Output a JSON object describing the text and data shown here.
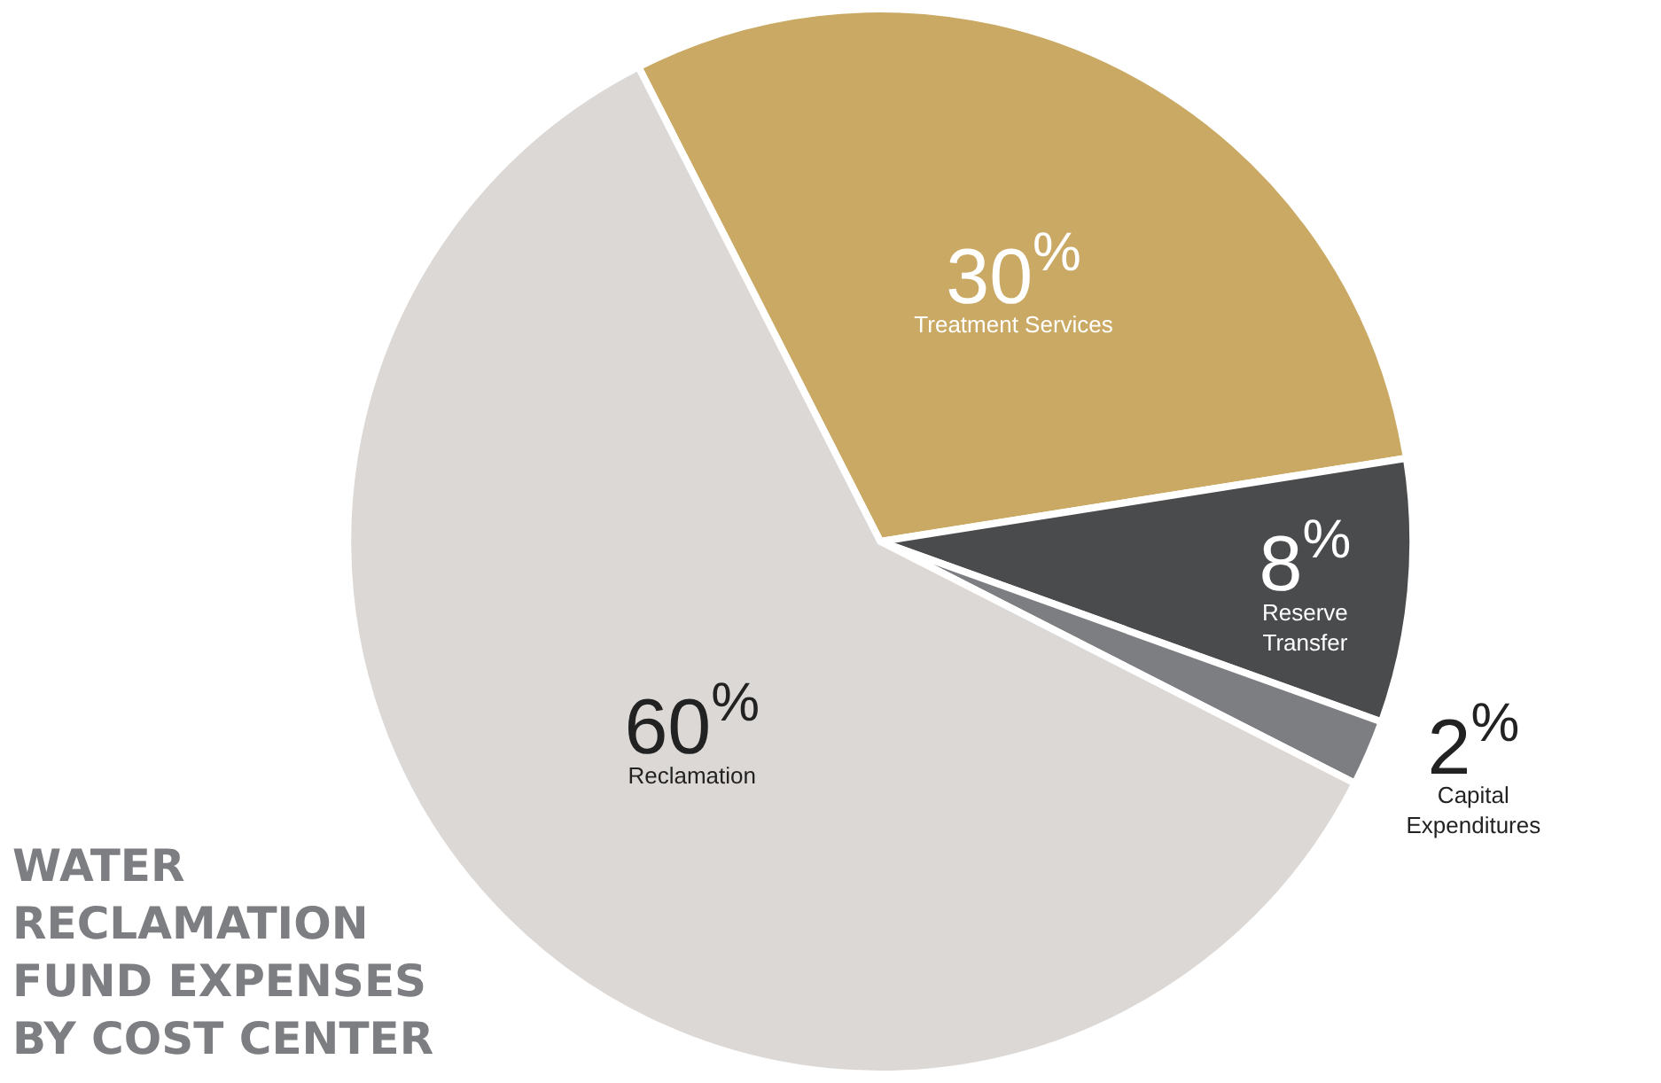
{
  "chart_data": {
    "type": "pie",
    "title": "WATER\nRECLAMATION\nFUND EXPENSES\nBY COST CENTER",
    "categories": [
      "Treatment Services",
      "Reserve Transfer",
      "Capital Expenditures",
      "Reclamation"
    ],
    "values": [
      30,
      8,
      2,
      60
    ],
    "value_labels": [
      "30$^{%}$",
      "8$^{%}$",
      "2$^{%}$",
      "60$^{%}$"
    ],
    "colors": [
      "#c9a963",
      "#4a4b4d",
      "#7d7e82",
      "#dcd8d5"
    ],
    "legend": false
  }
}
